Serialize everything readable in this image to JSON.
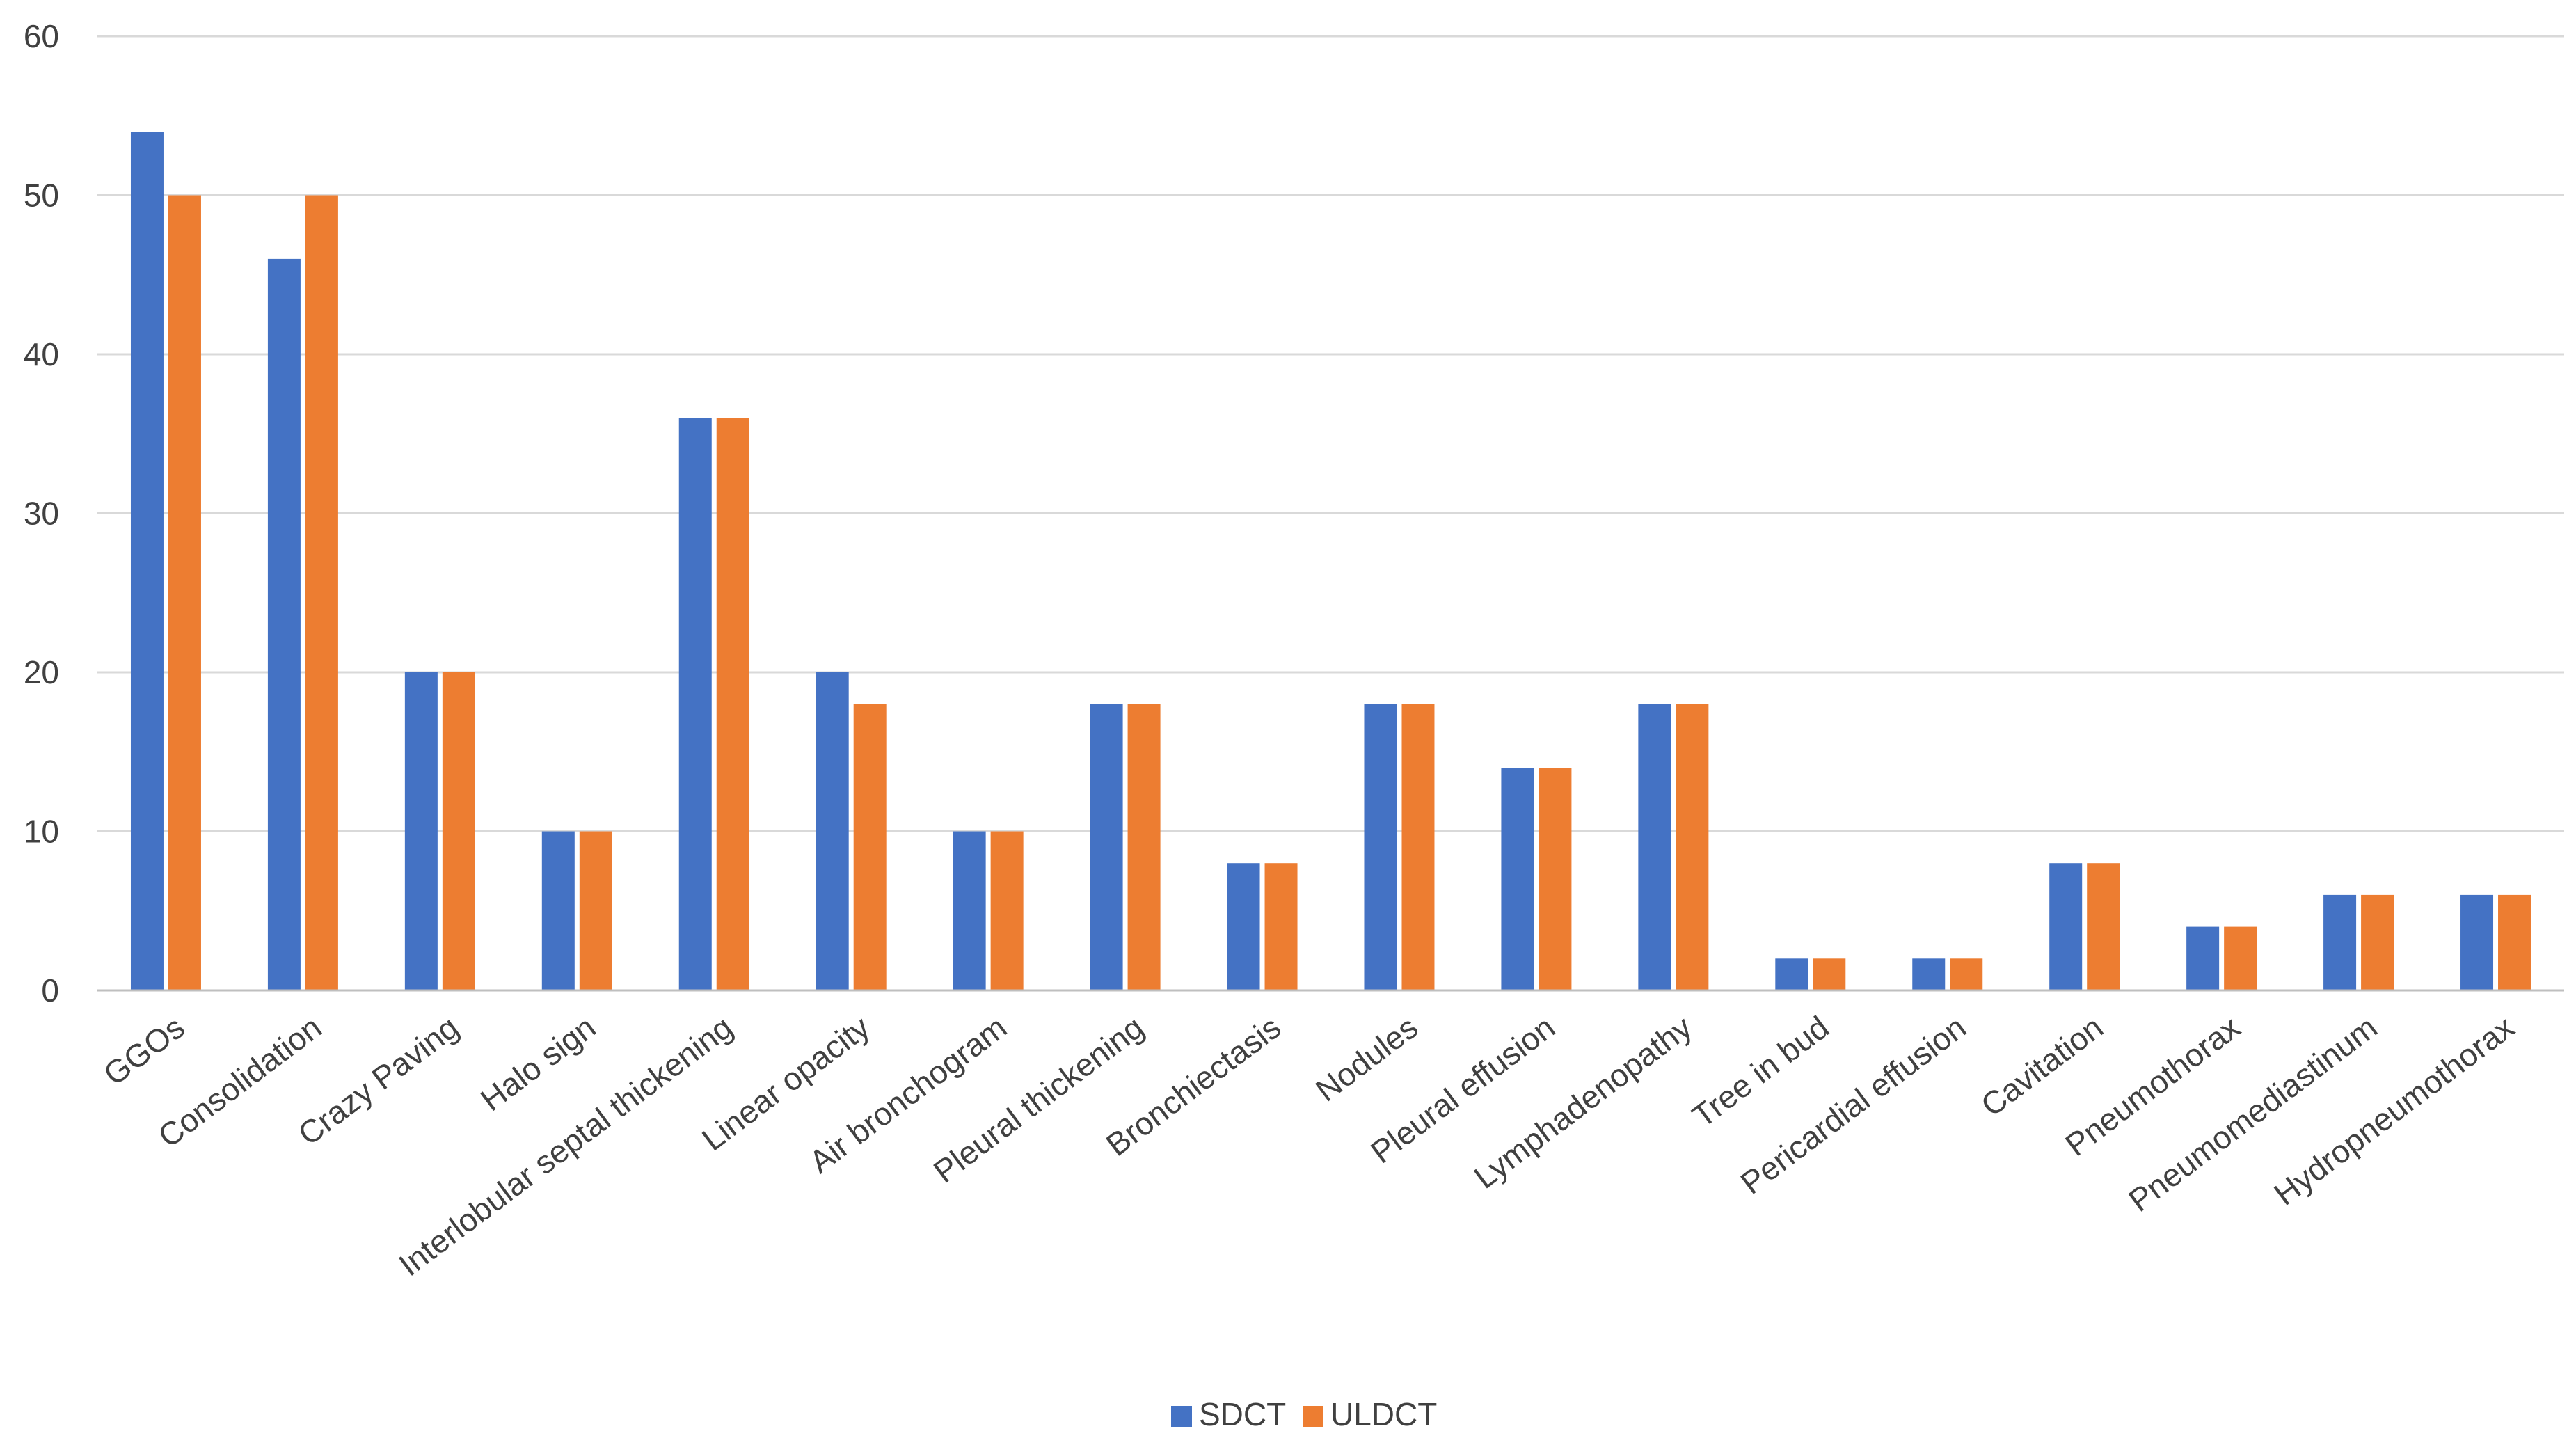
{
  "chart_data": {
    "type": "bar",
    "categories": [
      "GGOs",
      "Consolidation",
      "Crazy Paving",
      "Halo sign",
      "Interlobular septal thickening",
      "Linear opacity",
      "Air bronchogram",
      "Pleural thickening",
      "Bronchiectasis",
      "Nodules",
      "Pleural effusion",
      "Lymphadenopathy",
      "Tree in bud",
      "Pericardial effusion",
      "Cavitation",
      "Pneumothorax",
      "Pneumomediastinum",
      "Hydropneumothorax"
    ],
    "series": [
      {
        "name": "SDCT",
        "color": "#4472C4",
        "values": [
          54,
          46,
          20,
          10,
          36,
          20,
          10,
          18,
          8,
          18,
          14,
          18,
          2,
          2,
          8,
          4,
          6,
          6
        ]
      },
      {
        "name": "ULDCT",
        "color": "#ED7D31",
        "values": [
          50,
          50,
          20,
          10,
          36,
          18,
          10,
          18,
          8,
          18,
          14,
          18,
          2,
          2,
          8,
          4,
          6,
          6
        ]
      }
    ],
    "yticks": [
      0,
      10,
      20,
      30,
      40,
      50,
      60
    ],
    "ylim": [
      0,
      60
    ],
    "grid": true,
    "legend_position": "bottom",
    "title": "",
    "xlabel": "",
    "ylabel": ""
  }
}
